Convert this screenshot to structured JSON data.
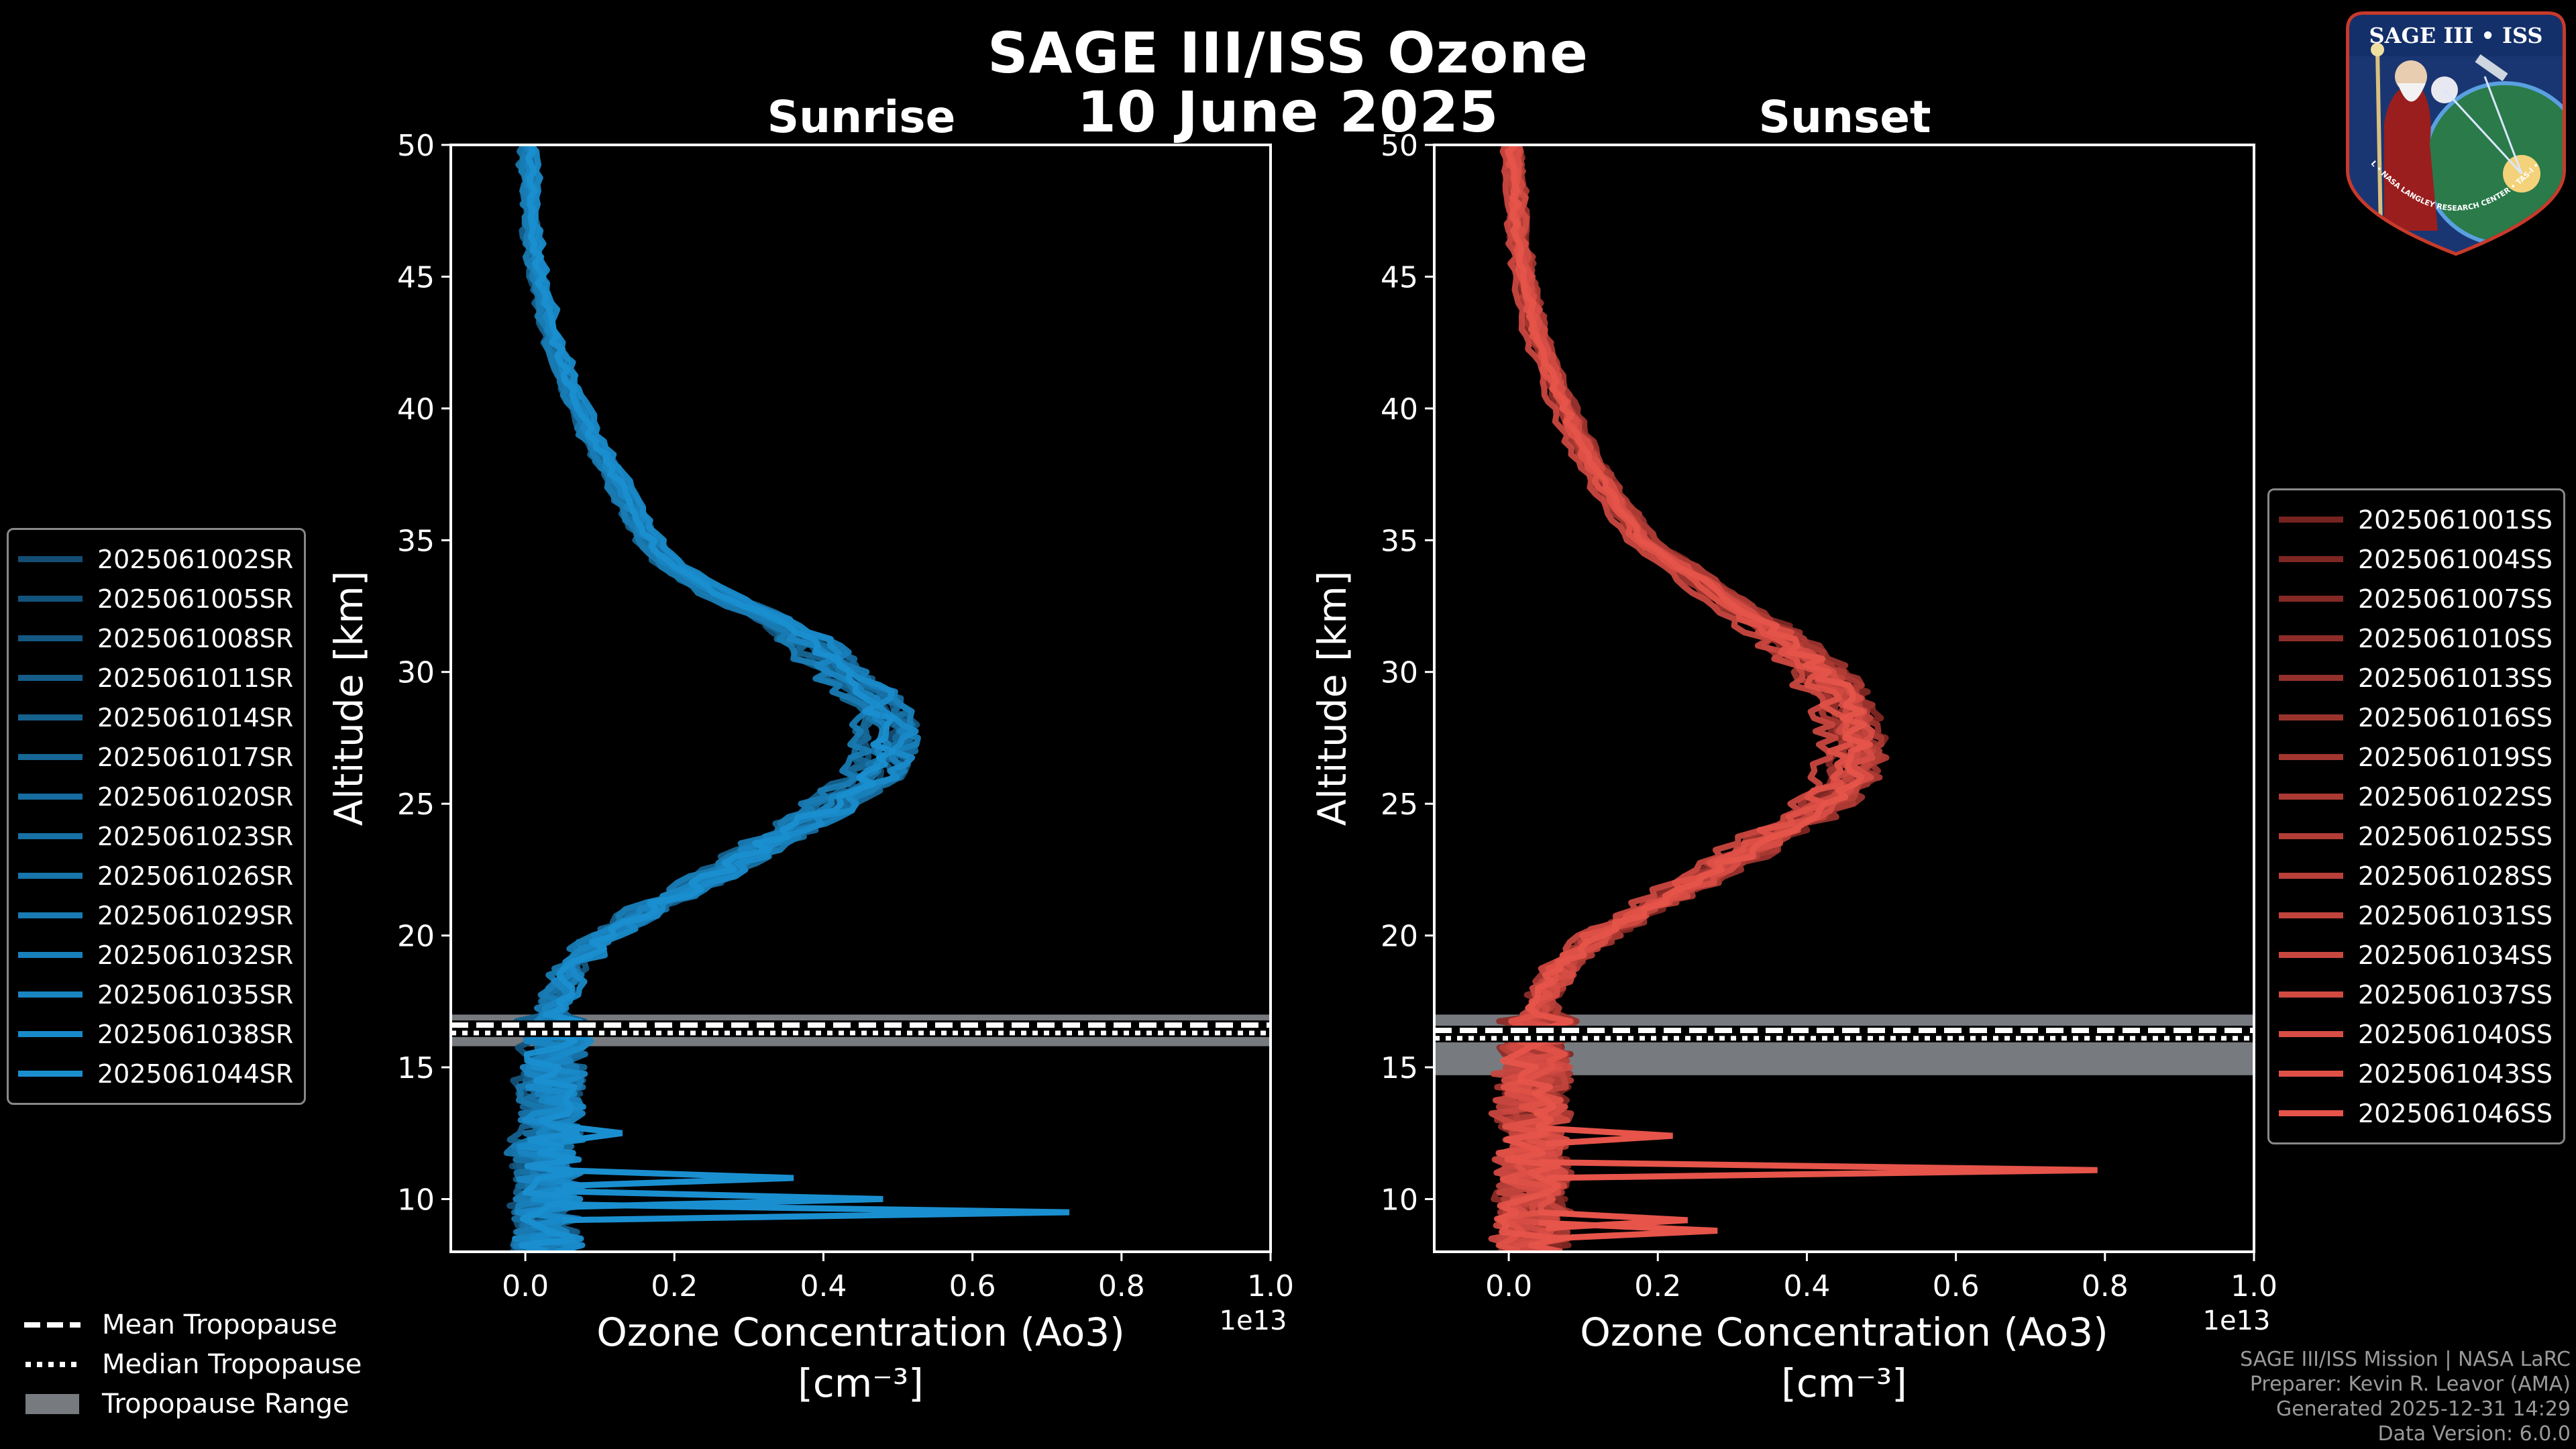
{
  "title": "SAGE III/ISS Ozone",
  "date": "10 June 2025",
  "panels": [
    {
      "title": "Sunrise",
      "legend_entries": [
        "2025061002SR",
        "2025061005SR",
        "2025061008SR",
        "2025061011SR",
        "2025061014SR",
        "2025061017SR",
        "2025061020SR",
        "2025061023SR",
        "2025061026SR",
        "2025061029SR",
        "2025061032SR",
        "2025061035SR",
        "2025061038SR",
        "2025061044SR"
      ]
    },
    {
      "title": "Sunset",
      "legend_entries": [
        "2025061001SS",
        "2025061004SS",
        "2025061007SS",
        "2025061010SS",
        "2025061013SS",
        "2025061016SS",
        "2025061019SS",
        "2025061022SS",
        "2025061025SS",
        "2025061028SS",
        "2025061031SS",
        "2025061034SS",
        "2025061037SS",
        "2025061040SS",
        "2025061043SS",
        "2025061046SS"
      ]
    }
  ],
  "tropopause_legend": {
    "mean": "Mean Tropopause",
    "median": "Median Tropopause",
    "range": "Tropopause Range"
  },
  "footer": [
    "SAGE III/ISS Mission | NASA LaRC",
    "Preparer: Kevin R. Leavor (AMA)",
    "Generated 2025-12-31 14:29",
    "Data Version: 6.0.0"
  ],
  "badge": {
    "title": "SAGE III • ISS",
    "ring_text": "BALL • NASA LANGLEY RESEARCH CENTER • TAS-I • ESA"
  },
  "colors": {
    "sunrise": "#1a8fd0",
    "sunset": "#e6544a",
    "tropopause_range": "#777b80",
    "background": "#000000"
  },
  "chart_data": [
    {
      "type": "line",
      "title": "Sunrise",
      "xlabel": "Ozone Concentration (Ao3)",
      "xunit": "[cm⁻³]",
      "ylabel": "Altitude [km]",
      "xlim": [
        -0.1,
        1.0
      ],
      "ylim": [
        8,
        50
      ],
      "x_ticks": [
        0.0,
        0.2,
        0.4,
        0.6,
        0.8,
        1.0
      ],
      "x_tick_labels": [
        "0.0",
        "0.2",
        "0.4",
        "0.6",
        "0.8",
        "1.0"
      ],
      "y_ticks": [
        10,
        15,
        20,
        25,
        30,
        35,
        40,
        45,
        50
      ],
      "y_tick_labels": [
        "10",
        "15",
        "20",
        "25",
        "30",
        "35",
        "40",
        "45",
        "50"
      ],
      "x_scale_label": "1e13",
      "tropopause": {
        "mean": 16.6,
        "median": 16.3,
        "range": [
          15.8,
          17.0
        ]
      },
      "typical_profile": {
        "altitude": [
          50,
          47,
          45,
          43,
          41,
          39,
          37,
          35,
          34,
          33,
          32,
          31,
          30,
          29,
          28,
          27,
          26,
          25,
          24,
          23,
          22,
          21,
          20,
          19,
          18,
          17,
          16,
          15,
          14,
          13,
          12,
          11,
          10,
          9,
          8
        ],
        "ozone": [
          0.005,
          0.01,
          0.02,
          0.035,
          0.06,
          0.09,
          0.13,
          0.17,
          0.2,
          0.26,
          0.34,
          0.39,
          0.43,
          0.47,
          0.49,
          0.49,
          0.47,
          0.42,
          0.36,
          0.3,
          0.24,
          0.17,
          0.11,
          0.07,
          0.05,
          0.04,
          0.04,
          0.04,
          0.035,
          0.035,
          0.03,
          0.03,
          0.03,
          0.03,
          0.03
        ]
      },
      "spikes": [
        {
          "altitude": 9.5,
          "ozone": 0.73
        },
        {
          "altitude": 10.0,
          "ozone": 0.48
        },
        {
          "altitude": 10.8,
          "ozone": 0.36
        },
        {
          "altitude": 12.5,
          "ozone": 0.13
        }
      ],
      "series": [
        "2025061002SR",
        "2025061005SR",
        "2025061008SR",
        "2025061011SR",
        "2025061014SR",
        "2025061017SR",
        "2025061020SR",
        "2025061023SR",
        "2025061026SR",
        "2025061029SR",
        "2025061032SR",
        "2025061035SR",
        "2025061038SR",
        "2025061044SR"
      ],
      "legend_position": "left"
    },
    {
      "type": "line",
      "title": "Sunset",
      "xlabel": "Ozone Concentration (Ao3)",
      "xunit": "[cm⁻³]",
      "ylabel": "Altitude [km]",
      "xlim": [
        -0.1,
        1.0
      ],
      "ylim": [
        8,
        50
      ],
      "x_ticks": [
        0.0,
        0.2,
        0.4,
        0.6,
        0.8,
        1.0
      ],
      "x_tick_labels": [
        "0.0",
        "0.2",
        "0.4",
        "0.6",
        "0.8",
        "1.0"
      ],
      "y_ticks": [
        10,
        15,
        20,
        25,
        30,
        35,
        40,
        45,
        50
      ],
      "y_tick_labels": [
        "10",
        "15",
        "20",
        "25",
        "30",
        "35",
        "40",
        "45",
        "50"
      ],
      "x_scale_label": "1e13",
      "tropopause": {
        "mean": 16.4,
        "median": 16.1,
        "range": [
          14.7,
          17.0
        ]
      },
      "typical_profile": {
        "altitude": [
          50,
          47,
          45,
          43,
          41,
          39,
          37,
          35,
          34,
          33,
          32,
          31,
          30,
          29,
          28,
          27,
          26,
          25,
          24,
          23,
          22,
          21,
          20,
          19,
          18,
          17,
          16,
          15,
          14,
          13,
          12,
          11,
          10,
          9,
          8
        ],
        "ozone": [
          0.005,
          0.01,
          0.02,
          0.035,
          0.06,
          0.09,
          0.13,
          0.18,
          0.23,
          0.28,
          0.33,
          0.38,
          0.42,
          0.45,
          0.46,
          0.47,
          0.46,
          0.43,
          0.37,
          0.31,
          0.25,
          0.18,
          0.12,
          0.08,
          0.05,
          0.04,
          0.035,
          0.035,
          0.03,
          0.03,
          0.03,
          0.03,
          0.03,
          0.03,
          0.03
        ]
      },
      "spikes": [
        {
          "altitude": 11.1,
          "ozone": 0.79
        },
        {
          "altitude": 12.4,
          "ozone": 0.22
        },
        {
          "altitude": 9.2,
          "ozone": 0.24
        },
        {
          "altitude": 8.8,
          "ozone": 0.28
        }
      ],
      "series": [
        "2025061001SS",
        "2025061004SS",
        "2025061007SS",
        "2025061010SS",
        "2025061013SS",
        "2025061016SS",
        "2025061019SS",
        "2025061022SS",
        "2025061025SS",
        "2025061028SS",
        "2025061031SS",
        "2025061034SS",
        "2025061037SS",
        "2025061040SS",
        "2025061043SS",
        "2025061046SS"
      ],
      "legend_position": "right"
    }
  ]
}
